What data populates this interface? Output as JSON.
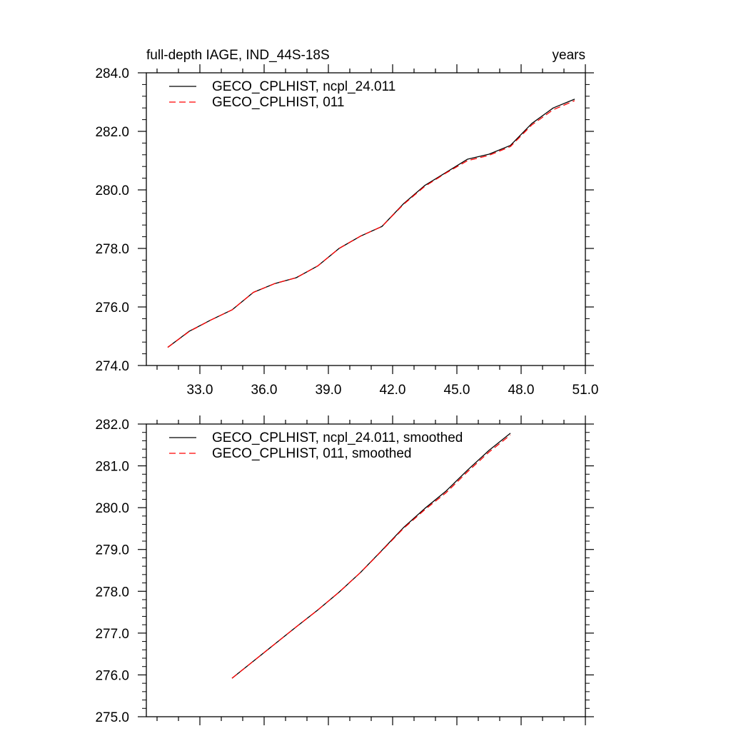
{
  "figure": {
    "title_left": "full-depth IAGE, IND_44S-18S",
    "title_right": "years"
  },
  "colors": {
    "axis": "#000000",
    "series_black": "#000000",
    "series_red": "#ff0000"
  },
  "chart_data": [
    {
      "type": "line",
      "title": "full-depth IAGE, IND_44S-18S",
      "units": "years",
      "xlim": [
        30.5,
        51.0
      ],
      "ylim": [
        274.0,
        284.0
      ],
      "x_ticks": [
        "33.0",
        "36.0",
        "39.0",
        "42.0",
        "45.0",
        "48.0",
        "51.0"
      ],
      "y_ticks": [
        "274.0",
        "276.0",
        "278.0",
        "280.0",
        "282.0",
        "284.0"
      ],
      "legend_position": "top-left",
      "x": [
        31.5,
        32.5,
        33.5,
        34.5,
        35.5,
        36.5,
        37.5,
        38.5,
        39.5,
        40.5,
        41.5,
        42.5,
        43.5,
        44.5,
        45.5,
        46.5,
        47.5,
        48.5,
        49.5,
        50.5
      ],
      "series": [
        {
          "name": "GECO_CPLHIST, ncpl_24.011",
          "color": "#000000",
          "dash": "solid",
          "values": [
            274.62,
            275.17,
            275.55,
            275.9,
            276.5,
            276.8,
            277.0,
            277.4,
            278.0,
            278.42,
            278.75,
            279.52,
            280.15,
            280.6,
            281.05,
            281.22,
            281.52,
            282.27,
            282.8,
            283.1
          ]
        },
        {
          "name": "GECO_CPLHIST, 011",
          "color": "#ff0000",
          "dash": "dashed",
          "values": [
            274.62,
            275.16,
            275.55,
            275.9,
            276.5,
            276.8,
            277.0,
            277.4,
            278.0,
            278.42,
            278.75,
            279.5,
            280.12,
            280.58,
            281.0,
            281.18,
            281.48,
            282.22,
            282.74,
            283.05
          ]
        }
      ]
    },
    {
      "type": "line",
      "title": "",
      "xlim": [
        30.5,
        51.0
      ],
      "ylim": [
        275.0,
        282.0
      ],
      "x_ticks": [],
      "y_ticks": [
        "275.0",
        "276.0",
        "277.0",
        "278.0",
        "279.0",
        "280.0",
        "281.0",
        "282.0"
      ],
      "legend_position": "top-left",
      "x": [
        34.5,
        35.5,
        36.5,
        37.5,
        38.5,
        39.5,
        40.5,
        41.5,
        42.5,
        43.5,
        44.5,
        45.5,
        46.5,
        47.5
      ],
      "series": [
        {
          "name": "GECO_CPLHIST, ncpl_24.011, smoothed",
          "color": "#000000",
          "dash": "solid",
          "values": [
            275.92,
            276.33,
            276.74,
            277.15,
            277.55,
            277.98,
            278.45,
            278.98,
            279.52,
            279.98,
            280.4,
            280.9,
            281.37,
            281.78
          ]
        },
        {
          "name": "GECO_CPLHIST, 011, smoothed",
          "color": "#ff0000",
          "dash": "dashed",
          "values": [
            275.92,
            276.33,
            276.74,
            277.15,
            277.55,
            277.98,
            278.45,
            278.97,
            279.5,
            279.95,
            280.36,
            280.86,
            281.33,
            281.74
          ]
        }
      ]
    }
  ]
}
